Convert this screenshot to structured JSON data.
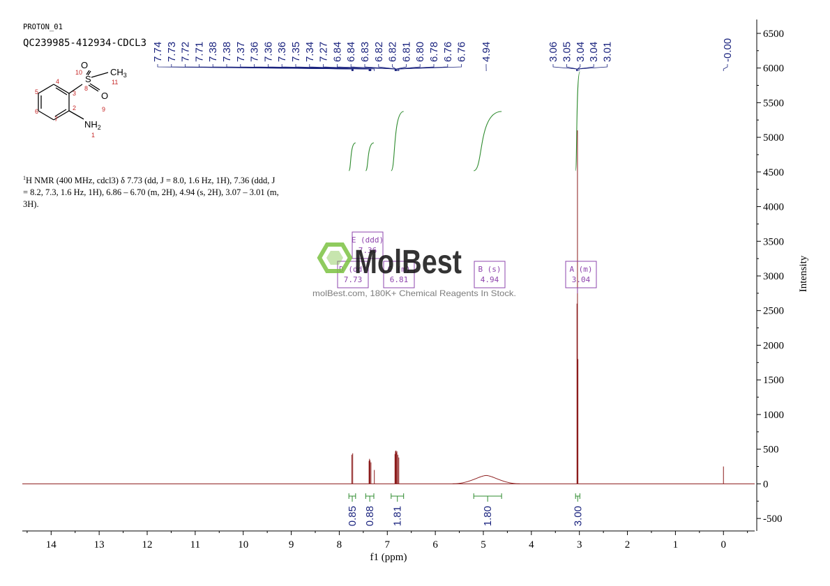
{
  "header": {
    "experiment": "PROTON_01",
    "sample": "QC239985-412934-CDCL3"
  },
  "nmr_summary": {
    "nucleus_mark": "1",
    "text": "H NMR (400 MHz, cdcl3) δ 7.73 (dd, J = 8.0, 1.6 Hz, 1H), 7.36 (ddd, J = 8.2, 7.3, 1.6 Hz, 1H), 6.86 – 6.70 (m, 2H), 4.94 (s, 2H), 3.07 – 3.01 (m, 3H)."
  },
  "structure": {
    "atoms": {
      "S": "S",
      "O_top": "O",
      "O_bottom": "O",
      "CH3": "CH3",
      "NH2": "NH2"
    },
    "numbers": [
      "1",
      "2",
      "3",
      "4",
      "5",
      "6",
      "7",
      "8",
      "9",
      "10",
      "11"
    ]
  },
  "watermark": {
    "brand": "MolBest",
    "tagline": "molBest.com, 180K+ Chemical Reagents In Stock."
  },
  "colors": {
    "spectrum": "#8b1a1a",
    "integral": "#2e8b2e",
    "peak_label": "#1a237e",
    "multiplet_box": "#8e44ad",
    "axis": "#000000"
  },
  "chart_data": {
    "type": "line",
    "title": "",
    "xlabel": "f1 (ppm)",
    "ylabel": "Intensity",
    "xlim": [
      14.6,
      -0.65
    ],
    "ylim": [
      -680,
      6700
    ],
    "x_reversed": true,
    "x_ticks": [
      "14",
      "13",
      "12",
      "11",
      "10",
      "9",
      "8",
      "7",
      "6",
      "5",
      "4",
      "3",
      "2",
      "1",
      "0"
    ],
    "y_ticks": [
      "6500",
      "6000",
      "5500",
      "5000",
      "4500",
      "4000",
      "3500",
      "3000",
      "2500",
      "2000",
      "1500",
      "1000",
      "500",
      "0",
      "-500"
    ],
    "peaks": [
      {
        "ppm": 7.74,
        "height": 420
      },
      {
        "ppm": 7.72,
        "height": 440
      },
      {
        "ppm": 7.38,
        "height": 330
      },
      {
        "ppm": 7.37,
        "height": 360
      },
      {
        "ppm": 7.36,
        "height": 340
      },
      {
        "ppm": 7.34,
        "height": 310
      },
      {
        "ppm": 7.27,
        "height": 200
      },
      {
        "ppm": 6.84,
        "height": 430
      },
      {
        "ppm": 6.83,
        "height": 470
      },
      {
        "ppm": 6.82,
        "height": 480
      },
      {
        "ppm": 6.81,
        "height": 450
      },
      {
        "ppm": 6.8,
        "height": 470
      },
      {
        "ppm": 6.78,
        "height": 420
      },
      {
        "ppm": 6.76,
        "height": 380
      },
      {
        "ppm": 3.05,
        "height": 2600
      },
      {
        "ppm": 3.04,
        "height": 5100
      },
      {
        "ppm": 3.03,
        "height": 1800
      },
      {
        "ppm": 0.0,
        "height": 250
      }
    ],
    "broad_peaks": [
      {
        "ppm": 4.94,
        "height": 120,
        "width": 0.35
      }
    ],
    "peak_labels": [
      "7.74",
      "7.73",
      "7.72",
      "7.71",
      "7.38",
      "7.38",
      "7.37",
      "7.36",
      "7.36",
      "7.36",
      "7.35",
      "7.34",
      "7.27",
      "6.84",
      "6.84",
      "6.83",
      "6.82",
      "6.82",
      "6.81",
      "6.80",
      "6.78",
      "6.76",
      "6.76",
      "4.94",
      "3.06",
      "3.05",
      "3.04",
      "3.04",
      "3.01",
      "-0.00"
    ],
    "multiplets": [
      {
        "label": "A (m)",
        "shift": "3.04",
        "ppm": 3.04
      },
      {
        "label": "B (s)",
        "shift": "4.94",
        "ppm": 4.94
      },
      {
        "label": "C (m)",
        "shift": "6.81",
        "ppm": 6.81
      },
      {
        "label": "D (dd)",
        "shift": "7.73",
        "ppm": 7.73
      },
      {
        "label": "E (ddd)",
        "shift": "7.36",
        "ppm": 7.36
      }
    ],
    "integrals": [
      {
        "value": "0.85",
        "from": 7.8,
        "to": 7.66
      },
      {
        "value": "0.88",
        "from": 7.45,
        "to": 7.28
      },
      {
        "value": "1.81",
        "from": 6.92,
        "to": 6.66
      },
      {
        "value": "1.80",
        "from": 5.2,
        "to": 4.62
      },
      {
        "value": "3.00",
        "from": 3.08,
        "to": 2.99
      }
    ]
  }
}
